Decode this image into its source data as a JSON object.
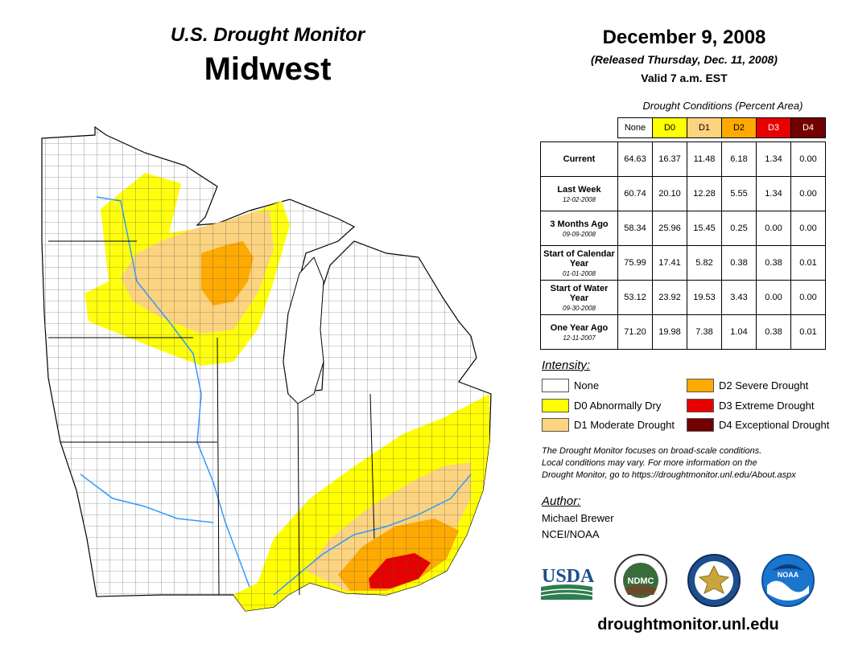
{
  "header": {
    "title_line1": "U.S. Drought Monitor",
    "title_line2": "Midwest",
    "date": "December 9, 2008",
    "released": "(Released Thursday, Dec. 11, 2008)",
    "valid": "Valid 7 a.m. EST"
  },
  "conditions": {
    "title": "Drought Conditions (Percent Area)",
    "columns": [
      {
        "label": "None",
        "color": "#ffffff"
      },
      {
        "label": "D0",
        "color": "#ffff00"
      },
      {
        "label": "D1",
        "color": "#fcd37f"
      },
      {
        "label": "D2",
        "color": "#ffaa00"
      },
      {
        "label": "D3",
        "color": "#e60000"
      },
      {
        "label": "D4",
        "color": "#730000"
      }
    ],
    "rows": [
      {
        "label": "Current",
        "sub": "",
        "values": [
          "64.63",
          "16.37",
          "11.48",
          "6.18",
          "1.34",
          "0.00"
        ]
      },
      {
        "label": "Last Week",
        "sub": "12-02-2008",
        "values": [
          "60.74",
          "20.10",
          "12.28",
          "5.55",
          "1.34",
          "0.00"
        ]
      },
      {
        "label": "3 Months Ago",
        "sub": "09-09-2008",
        "values": [
          "58.34",
          "25.96",
          "15.45",
          "0.25",
          "0.00",
          "0.00"
        ]
      },
      {
        "label": "Start of Calendar Year",
        "sub": "01-01-2008",
        "values": [
          "75.99",
          "17.41",
          "5.82",
          "0.38",
          "0.38",
          "0.01"
        ]
      },
      {
        "label": "Start of Water Year",
        "sub": "09-30-2008",
        "values": [
          "53.12",
          "23.92",
          "19.53",
          "3.43",
          "0.00",
          "0.00"
        ]
      },
      {
        "label": "One Year Ago",
        "sub": "12-11-2007",
        "values": [
          "71.20",
          "19.98",
          "7.38",
          "1.04",
          "0.38",
          "0.01"
        ]
      }
    ]
  },
  "legend": {
    "title": "Intensity:",
    "items": [
      {
        "label": "None",
        "color": "#ffffff"
      },
      {
        "label": "D0 Abnormally Dry",
        "color": "#ffff00"
      },
      {
        "label": "D1 Moderate Drought",
        "color": "#fcd37f"
      },
      {
        "label": "D2 Severe Drought",
        "color": "#ffaa00"
      },
      {
        "label": "D3 Extreme Drought",
        "color": "#e60000"
      },
      {
        "label": "D4 Exceptional Drought",
        "color": "#730000"
      }
    ]
  },
  "note": {
    "line1": "The Drought Monitor focuses on broad-scale conditions.",
    "line2": "Local conditions may vary. For more information on the",
    "line3": "Drought Monitor, go to https://droughtmonitor.unl.edu/About.aspx"
  },
  "author": {
    "title": "Author:",
    "name": "Michael Brewer",
    "org": "NCEI/NOAA"
  },
  "logos": {
    "usda": "USDA",
    "ndmc": "NDMC",
    "noaa": "NOAA"
  },
  "footer": {
    "url": "droughtmonitor.unl.edu"
  }
}
